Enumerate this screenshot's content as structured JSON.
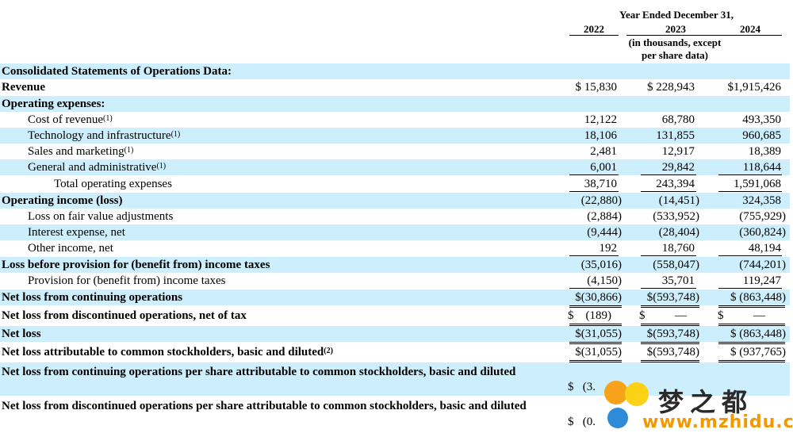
{
  "header": {
    "period": "Year Ended December 31,",
    "years": [
      "2022",
      "2023",
      "2024"
    ],
    "note_line1": "(in thousands, except",
    "note_line2": "per share data)"
  },
  "section_title": "Consolidated Statements of Operations Data:",
  "rows": [
    {
      "label": "Revenue",
      "v": [
        "$ 15,830",
        "$ 228,943",
        "$1,915,426"
      ]
    },
    {
      "label": "Operating expenses:"
    },
    {
      "label": "Cost of revenue",
      "sup": "(1)",
      "v": [
        "12,122",
        "68,780",
        "493,350"
      ]
    },
    {
      "label": "Technology and infrastructure",
      "sup": "(1)",
      "v": [
        "18,106",
        "131,855",
        "960,685"
      ]
    },
    {
      "label": "Sales and marketing",
      "sup": "(1)",
      "v": [
        "2,481",
        "12,917",
        "18,389"
      ]
    },
    {
      "label": "General and administrative",
      "sup": "(1)",
      "v": [
        "6,001",
        "29,842",
        "118,644"
      ]
    },
    {
      "label": "Total operating expenses",
      "v": [
        "38,710",
        "243,394",
        "1,591,068"
      ]
    },
    {
      "label": "Operating income (loss)",
      "v": [
        "(22,880)",
        "(14,451)",
        "324,358"
      ]
    },
    {
      "label": "Loss on fair value adjustments",
      "v": [
        "(2,884)",
        "(533,952)",
        "(755,929)"
      ]
    },
    {
      "label": "Interest expense, net",
      "v": [
        "(9,444)",
        "(28,404)",
        "(360,824)"
      ]
    },
    {
      "label": "Other income, net",
      "v": [
        "192",
        "18,760",
        "48,194"
      ]
    },
    {
      "label": "Loss before provision for (benefit from) income taxes",
      "v": [
        "(35,016)",
        "(558,047)",
        "(744,201)"
      ]
    },
    {
      "label": "Provision for (benefit from) income taxes",
      "v": [
        "(4,150)",
        "35,701",
        "119,247"
      ]
    },
    {
      "label": "Net loss from continuing operations",
      "v": [
        "$(30,866)",
        "$(593,748)",
        "$ (863,448)"
      ]
    },
    {
      "label": "Net loss from discontinued operations, net of tax",
      "v": [
        "$    (189)",
        "$          —",
        "$          —"
      ]
    },
    {
      "label": "Net loss",
      "v": [
        "$(31,055)",
        "$(593,748)",
        "$ (863,448)"
      ]
    },
    {
      "label": "Net loss attributable to common stockholders, basic and diluted",
      "sup": "(2)",
      "v": [
        "$(31,055)",
        "$(593,748)",
        "$ (937,765)"
      ]
    },
    {
      "label": "Net loss from continuing operations per share attributable to common stockholders, basic and diluted",
      "v": [
        "$   (3."
      ]
    },
    {
      "label": "Net loss from discontinued operations per share attributable to common stockholders, basic and diluted",
      "v": [
        "$   (0."
      ]
    }
  ],
  "watermark": {
    "cn": "梦之都",
    "url": "www.mzhidu.com"
  }
}
